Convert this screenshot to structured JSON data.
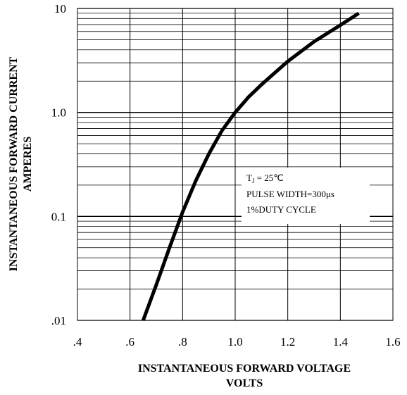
{
  "chart_data": {
    "type": "line",
    "xlabel": [
      "INSTANTANEOUS FORWARD VOLTAGE",
      "VOLTS"
    ],
    "ylabel": [
      "INSTANTANEOUS FORWARD CURRENT",
      "AMPERES"
    ],
    "x_tick_labels": [
      ".4",
      ".6",
      ".8",
      "1.0",
      "1.2",
      "1.4",
      "1.6"
    ],
    "y_tick_labels": [
      ".01",
      "0.1",
      "1.0",
      "10"
    ],
    "xlim": [
      0.4,
      1.6
    ],
    "ylim": [
      0.01,
      10
    ],
    "y_scale": "log",
    "grid": true,
    "annotation": {
      "line1_main": "T",
      "line1_sub": "J",
      "line1_rest": " = 25℃",
      "line2": "PULSE WIDTH=300μs",
      "line3": "1%DUTY CYCLE"
    },
    "series": [
      {
        "x": [
          0.65,
          0.7,
          0.75,
          0.8,
          0.85,
          0.9,
          0.95,
          1.0,
          1.05,
          1.1,
          1.2,
          1.3,
          1.4,
          1.47
        ],
        "y": [
          0.01,
          0.022,
          0.05,
          0.11,
          0.22,
          0.4,
          0.67,
          1.0,
          1.4,
          1.85,
          3.1,
          4.8,
          6.9,
          9.0
        ]
      }
    ]
  }
}
